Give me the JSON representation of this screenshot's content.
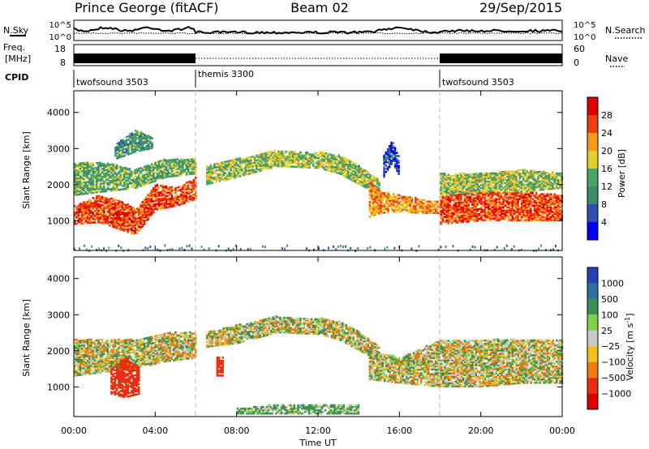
{
  "header": {
    "station": "Prince George (fitACF)",
    "beam": "Beam 02",
    "date": "29/Sep/2015"
  },
  "strip_labels": {
    "nsky": "N.Sky",
    "freq_line1": "Freq.",
    "freq_line2": "[MHz]",
    "cpid": "CPID",
    "nsearch": "N.Search",
    "nave": "Nave",
    "nsky_ticks": [
      "10^5",
      "10^0"
    ],
    "nsearch_ticks": [
      "10^5",
      "10^0"
    ],
    "freq_ticks": [
      "18",
      "8"
    ],
    "nave_ticks": [
      "60",
      "0"
    ]
  },
  "cpid_segments": [
    {
      "label": "twofsound 3503",
      "start_hour": 0,
      "end_hour": 6
    },
    {
      "label": "themis 3300",
      "start_hour": 6,
      "end_hour": 18
    },
    {
      "label": "twofsound 3503",
      "start_hour": 18,
      "end_hour": 24
    }
  ],
  "chart_data": [
    {
      "type": "heatmap",
      "quantity": "Power",
      "xlabel": "Time UT",
      "ylabel": "Slant Range [km]",
      "colorbar_label": "Power [dB]",
      "x_ticks": [
        "00:00",
        "04:00",
        "08:00",
        "12:00",
        "16:00",
        "20:00",
        "00:00"
      ],
      "xlim_hours": [
        0,
        24
      ],
      "y_ticks": [
        1000,
        2000,
        3000,
        4000
      ],
      "ylim": [
        180,
        4600
      ],
      "colorbar_ticks": [
        4,
        8,
        12,
        16,
        20,
        24,
        28
      ],
      "colorbar_range": [
        0,
        32
      ],
      "colors": [
        "#0000ff",
        "#2e4fb0",
        "#3f8c6a",
        "#48a46a",
        "#e2cf2e",
        "#f59a1c",
        "#ee3f10",
        "#e00000"
      ],
      "bands": [
        {
          "t": [
            0,
            1.2,
            2.5,
            3.0,
            4.0,
            5.0,
            6.0
          ],
          "lo": [
            900,
            950,
            700,
            600,
            1300,
            1400,
            1600
          ],
          "hi": [
            1400,
            1700,
            1500,
            1300,
            2000,
            1900,
            2200
          ],
          "power": 26
        },
        {
          "t": [
            0,
            1.5,
            3.0,
            4.5,
            6.0
          ],
          "lo": [
            1700,
            1800,
            1900,
            2200,
            2300
          ],
          "hi": [
            2600,
            2600,
            2400,
            2700,
            2700
          ],
          "power": 14
        },
        {
          "t": [
            2.0,
            3.0,
            3.8
          ],
          "lo": [
            2700,
            2900,
            3000
          ],
          "hi": [
            3100,
            3500,
            3300
          ],
          "power": 12
        },
        {
          "t": [
            6.5,
            8.0,
            10.0,
            12.0,
            13.0,
            14.0,
            15.0
          ],
          "lo": [
            2000,
            2200,
            2500,
            2450,
            2300,
            2000,
            1700
          ],
          "hi": [
            2500,
            2700,
            2950,
            2900,
            2800,
            2500,
            2100
          ],
          "power": 16
        },
        {
          "t": [
            14.5,
            15.0,
            16.0,
            17.0,
            18.0
          ],
          "lo": [
            1100,
            1200,
            1250,
            1200,
            1200
          ],
          "hi": [
            2100,
            1800,
            1700,
            1600,
            1500
          ],
          "power": 22
        },
        {
          "t": [
            18.0,
            20.0,
            22.0,
            24.0
          ],
          "lo": [
            900,
            1000,
            1000,
            1000
          ],
          "hi": [
            1700,
            1800,
            1800,
            1700
          ],
          "power": 26
        },
        {
          "t": [
            18.0,
            20.0,
            22.0,
            24.0
          ],
          "lo": [
            1700,
            1800,
            1800,
            1900
          ],
          "hi": [
            2300,
            2300,
            2400,
            2300
          ],
          "power": 16
        },
        {
          "t": [
            15.2,
            15.6,
            16.0
          ],
          "lo": [
            2200,
            2600,
            2200
          ],
          "hi": [
            2800,
            3200,
            2700
          ],
          "power": 6
        }
      ],
      "near_range_band": {
        "t": [
          0,
          24
        ],
        "lo": [
          200,
          200
        ],
        "hi": [
          350,
          350
        ],
        "power": 10
      }
    },
    {
      "type": "heatmap",
      "quantity": "Velocity",
      "xlabel": "Time UT",
      "ylabel": "Slant Range [km]",
      "colorbar_label": "Velocity [m s^-1]",
      "x_ticks": [
        "00:00",
        "04:00",
        "08:00",
        "12:00",
        "16:00",
        "20:00",
        "00:00"
      ],
      "xlim_hours": [
        0,
        24
      ],
      "y_ticks": [
        1000,
        2000,
        3000,
        4000
      ],
      "ylim": [
        180,
        4600
      ],
      "colorbar_ticks": [
        "1000",
        "500",
        "100",
        "25",
        "−25",
        "−100",
        "−500",
        "−1000"
      ],
      "colors": [
        "#2a3fb5",
        "#2f6fa0",
        "#3b8f52",
        "#7dd048",
        "#c8c8c4",
        "#f2c01c",
        "#f07a12",
        "#e83010",
        "#e00000"
      ],
      "bands": [
        {
          "t": [
            0,
            1.5,
            3.0,
            4.5,
            6.0
          ],
          "lo": [
            1300,
            1400,
            1500,
            1700,
            1800
          ],
          "hi": [
            2300,
            2300,
            2300,
            2500,
            2500
          ],
          "velocity": 0
        },
        {
          "t": [
            6.5,
            8.0,
            10.0,
            12.0,
            13.0,
            14.0,
            15.0
          ],
          "lo": [
            2100,
            2200,
            2500,
            2450,
            2300,
            2000,
            1700
          ],
          "hi": [
            2500,
            2700,
            2950,
            2900,
            2800,
            2500,
            2100
          ],
          "velocity": 0
        },
        {
          "t": [
            14.5,
            16.0,
            18.0,
            20.0,
            22.0,
            24.0
          ],
          "lo": [
            1200,
            1100,
            1000,
            1000,
            1100,
            1100
          ],
          "hi": [
            2000,
            1800,
            2300,
            2300,
            2300,
            2300
          ],
          "velocity": 0
        },
        {
          "t": [
            1.8,
            2.5,
            3.2
          ],
          "lo": [
            800,
            700,
            800
          ],
          "hi": [
            1500,
            1800,
            1500
          ],
          "velocity": -600
        },
        {
          "t": [
            7.0,
            7.3
          ],
          "lo": [
            1300,
            1300
          ],
          "hi": [
            1800,
            1800
          ],
          "velocity": -500
        },
        {
          "t": [
            8.0,
            10.0,
            12.0,
            14.0
          ],
          "lo": [
            250,
            250,
            250,
            250
          ],
          "hi": [
            400,
            500,
            500,
            500
          ],
          "velocity": 80
        }
      ]
    }
  ]
}
